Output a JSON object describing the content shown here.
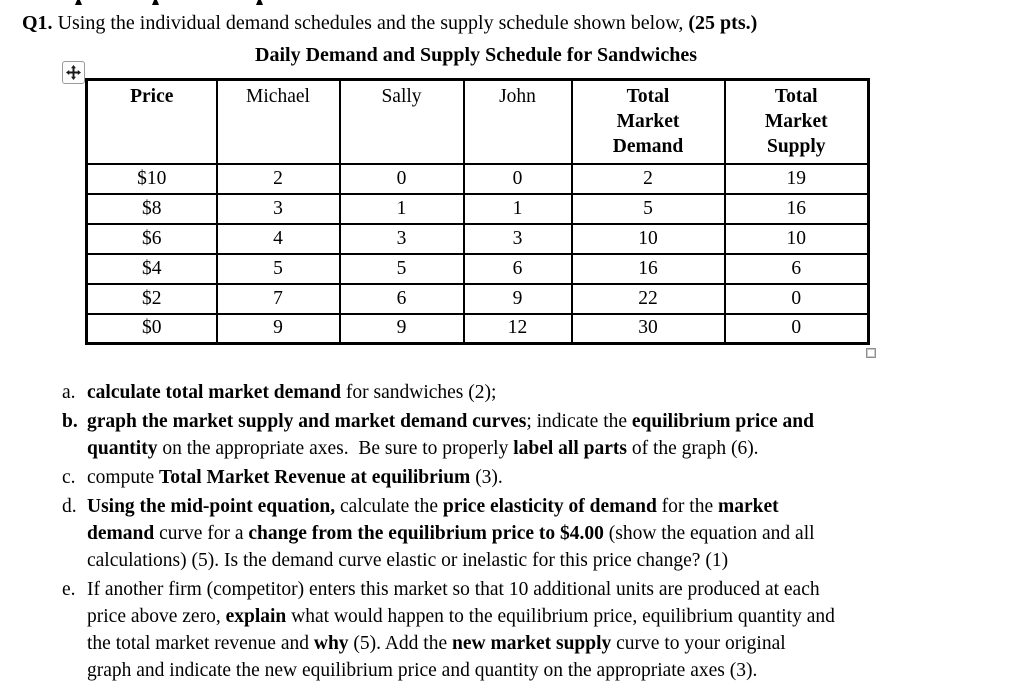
{
  "page": {
    "background": "#ffffff",
    "text_color": "#000000",
    "border_color": "#000000"
  },
  "question": {
    "number": "Q1.",
    "intro": " Using the individual demand schedules and the supply schedule shown below, ",
    "points": "(25 pts.)"
  },
  "table": {
    "title": "Daily Demand and Supply Schedule for Sandwiches",
    "headers": [
      {
        "lines": [
          "Price"
        ],
        "bold": true
      },
      {
        "lines": [
          "Michael"
        ],
        "bold": false
      },
      {
        "lines": [
          "Sally"
        ],
        "bold": false
      },
      {
        "lines": [
          "John"
        ],
        "bold": false
      },
      {
        "lines": [
          "Total",
          "Market",
          "Demand"
        ],
        "bold": true
      },
      {
        "lines": [
          "Total",
          "Market",
          "Supply"
        ],
        "bold": true
      }
    ],
    "rows": [
      [
        "$10",
        "2",
        "0",
        "0",
        "2",
        "19"
      ],
      [
        "$8",
        "3",
        "1",
        "1",
        "5",
        "16"
      ],
      [
        "$6",
        "4",
        "3",
        "3",
        "10",
        "10"
      ],
      [
        "$4",
        "5",
        "5",
        "6",
        "16",
        "6"
      ],
      [
        "$2",
        "7",
        "6",
        "9",
        "22",
        "0"
      ],
      [
        "$0",
        "9",
        "9",
        "12",
        "30",
        "0"
      ]
    ]
  },
  "items": [
    {
      "label": "a.",
      "label_bold": false,
      "segments": [
        {
          "t": "calculate total market demand",
          "b": true
        },
        {
          "t": " for sandwiches (2);",
          "b": false
        }
      ]
    },
    {
      "label": "b.",
      "label_bold": true,
      "segments": [
        {
          "t": "graph the market supply and market demand curves",
          "b": true
        },
        {
          "t": "; indicate the ",
          "b": false
        },
        {
          "t": "equilibrium price and",
          "b": true
        },
        {
          "br": true
        },
        {
          "t": "quantity",
          "b": true
        },
        {
          "t": " on the appropriate axes.  Be sure to properly ",
          "b": false
        },
        {
          "t": "label all parts",
          "b": true
        },
        {
          "t": " of the graph (6).",
          "b": false
        }
      ]
    },
    {
      "label": "c.",
      "label_bold": false,
      "segments": [
        {
          "t": "compute ",
          "b": false
        },
        {
          "t": "Total Market Revenue at equilibrium",
          "b": true
        },
        {
          "t": " (3).",
          "b": false
        }
      ]
    },
    {
      "label": "d.",
      "label_bold": false,
      "segments": [
        {
          "t": "Using the mid-point equation,",
          "b": true
        },
        {
          "t": " calculate the ",
          "b": false
        },
        {
          "t": "price elasticity of demand",
          "b": true
        },
        {
          "t": " for the ",
          "b": false
        },
        {
          "t": "market",
          "b": true
        },
        {
          "br": true
        },
        {
          "t": "demand",
          "b": true
        },
        {
          "t": " curve for a ",
          "b": false
        },
        {
          "t": "change from the equilibrium price to $4.00",
          "b": true
        },
        {
          "t": " (show the equation and all",
          "b": false
        },
        {
          "br": true
        },
        {
          "t": "calculations) (5). Is the demand curve elastic or inelastic for this price change? (1)",
          "b": false
        }
      ]
    },
    {
      "label": "e.",
      "label_bold": false,
      "segments": [
        {
          "t": "If another firm (competitor) enters this market so that 10 additional units are produced at each",
          "b": false
        },
        {
          "br": true
        },
        {
          "t": "price above zero, ",
          "b": false
        },
        {
          "t": "explain",
          "b": true
        },
        {
          "t": " what would happen to the equilibrium price, equilibrium quantity and",
          "b": false
        },
        {
          "br": true
        },
        {
          "t": "the total market revenue and ",
          "b": false
        },
        {
          "t": "why",
          "b": true
        },
        {
          "t": " (5). Add the ",
          "b": false
        },
        {
          "t": "new market supply",
          "b": true
        },
        {
          "t": " curve to your original",
          "b": false
        },
        {
          "br": true
        },
        {
          "t": "graph and indicate the new equilibrium price and quantity on the appropriate axes (3).",
          "b": false
        }
      ]
    }
  ],
  "icons": {
    "table_move_handle": "four-arrow-cross",
    "table_resize_handle": "small-square"
  }
}
